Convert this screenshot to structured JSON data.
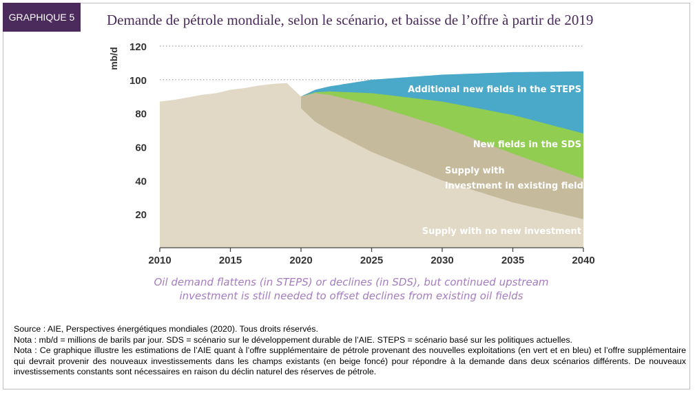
{
  "badge": "GRAPHIQUE 5",
  "title": "Demande de pétrole mondiale, selon le scénario, et baisse de l’offre à partir de 2019",
  "chart_data": {
    "type": "area",
    "ylabel": "mb/d",
    "xlabel": "",
    "x_ticks": [
      "2010",
      "2015",
      "2020",
      "2025",
      "2030",
      "2035",
      "2040"
    ],
    "y_ticks": [
      "20",
      "40",
      "60",
      "80",
      "100",
      "120"
    ],
    "xlim": [
      2010,
      2040
    ],
    "ylim": [
      0,
      120
    ],
    "grid": "dotted lines at 100 and 120",
    "history": {
      "x": [
        2010,
        2011,
        2012,
        2013,
        2014,
        2015,
        2016,
        2017,
        2018,
        2019,
        2020
      ],
      "y": [
        87,
        88,
        89.5,
        91,
        92,
        94,
        95,
        96.5,
        97.5,
        98,
        90
      ]
    },
    "series": [
      {
        "name": "Additional new fields in the STEPS",
        "color": "#4aa8c9",
        "x": [
          2020,
          2021,
          2022,
          2025,
          2030,
          2035,
          2040
        ],
        "y": [
          90,
          94,
          96,
          100,
          103,
          104.5,
          105
        ]
      },
      {
        "name": "New fields in the SDS",
        "color": "#90cd50",
        "x": [
          2020,
          2021,
          2022,
          2025,
          2030,
          2035,
          2040
        ],
        "y": [
          90,
          92.5,
          93,
          92,
          87,
          79,
          68
        ]
      },
      {
        "name": "Supply with investment in existing fields",
        "color": "#c6ba9c",
        "x": [
          2020,
          2021,
          2022,
          2025,
          2030,
          2035,
          2040
        ],
        "y": [
          90,
          92,
          91,
          85,
          72,
          56,
          41
        ]
      },
      {
        "name": "Supply with no new investment",
        "color": "#e1d8c6",
        "x": [
          2019,
          2020,
          2021,
          2022,
          2025,
          2030,
          2035,
          2040
        ],
        "y": [
          98,
          83,
          75,
          70,
          57,
          40,
          27,
          17
        ]
      }
    ],
    "labels": [
      "Additional new fields in the STEPS",
      "New fields in the SDS",
      "Supply with",
      "investment in existing fields",
      "Supply with no new investment"
    ]
  },
  "caption": {
    "line1": "Oil demand flattens (in STEPS) or declines (in SDS), but continued upstream",
    "line2": "investment is still needed to offset declines from existing oil fields"
  },
  "notes": {
    "source": "Source : AIE, Perspectives énergétiques mondiales (2020). Tous droits réservés.",
    "nota1": "Nota : mb/d = millions de barils par jour. SDS = scénario sur le développement durable de l’AIE. STEPS = scénario basé sur les politiques actuelles.",
    "nota2": "Nota : Ce graphique illustre les estimations de l’AIE quant à l’offre supplémentaire de pétrole provenant des nouvelles exploitations (en vert et en bleu) et l’offre supplémentaire qui devrait provenir des nouveaux investissements dans les champs existants (en beige foncé) pour répondre à la demande dans deux scénarios différents. De nouveaux investissements constants sont nécessaires en raison du déclin naturel des réserves de pétrole."
  }
}
